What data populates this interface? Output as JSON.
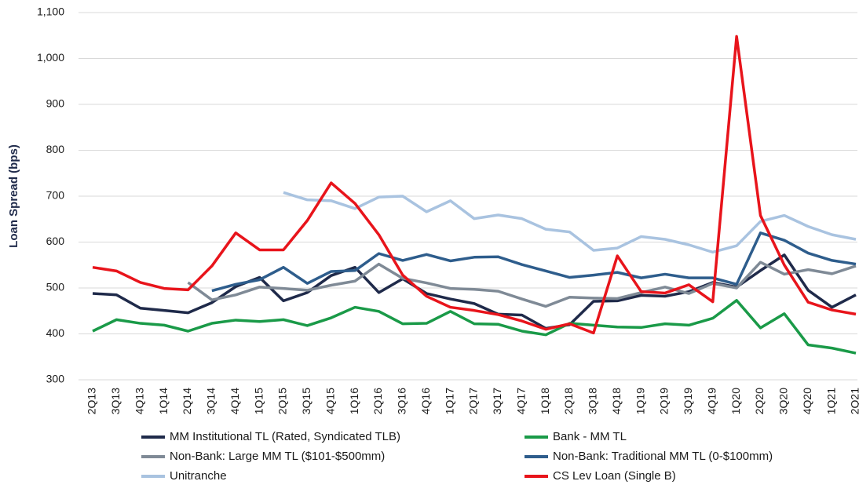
{
  "chart_data": {
    "type": "line",
    "ylabel": "Loan Spread (bps)",
    "categories": [
      "2Q13",
      "3Q13",
      "4Q13",
      "1Q14",
      "2Q14",
      "3Q14",
      "4Q14",
      "1Q15",
      "2Q15",
      "3Q15",
      "4Q15",
      "1Q16",
      "2Q16",
      "3Q16",
      "4Q16",
      "1Q17",
      "2Q17",
      "3Q17",
      "4Q17",
      "1Q18",
      "2Q18",
      "3Q18",
      "4Q18",
      "1Q19",
      "2Q19",
      "3Q19",
      "4Q19",
      "1Q20",
      "2Q20",
      "3Q20",
      "4Q20",
      "1Q21",
      "2Q21"
    ],
    "ylim": [
      300,
      1100
    ],
    "yticks": [
      300,
      400,
      500,
      600,
      700,
      800,
      900,
      {
        "value": 1000,
        "label": "1,000"
      },
      {
        "value": 1100,
        "label": "1,100"
      }
    ],
    "grid": true,
    "series": [
      {
        "name": "MM Institutional TL (Rated, Syndicated TLB)",
        "color": "#1f2a4a",
        "values": [
          488,
          485,
          456,
          451,
          446,
          468,
          503,
          523,
          472,
          490,
          527,
          545,
          490,
          520,
          488,
          476,
          466,
          443,
          441,
          412,
          420,
          471,
          472,
          484,
          482,
          492,
          512,
          502,
          538,
          572,
          495,
          458,
          485
        ]
      },
      {
        "name": "Bank - MM TL",
        "color": "#1a9a48",
        "values": [
          406,
          431,
          423,
          419,
          406,
          423,
          430,
          427,
          431,
          418,
          435,
          458,
          449,
          422,
          423,
          449,
          422,
          421,
          406,
          398,
          423,
          419,
          415,
          414,
          422,
          419,
          434,
          473,
          413,
          444,
          376,
          369,
          358
        ]
      },
      {
        "name": "Non-Bank: Large MM TL ($101-$500mm)",
        "color": "#7f8a96",
        "values": [
          null,
          null,
          null,
          null,
          512,
          474,
          485,
          502,
          499,
          495,
          506,
          515,
          552,
          521,
          511,
          499,
          497,
          493,
          476,
          460,
          480,
          478,
          477,
          490,
          502,
          488,
          510,
          500,
          556,
          530,
          540,
          531,
          548
        ]
      },
      {
        "name": "Non-Bank: Traditional MM TL (0-$100mm)",
        "color": "#2e5d8c",
        "values": [
          null,
          null,
          null,
          null,
          null,
          494,
          508,
          518,
          545,
          510,
          536,
          538,
          575,
          560,
          573,
          559,
          567,
          568,
          551,
          537,
          523,
          528,
          534,
          522,
          530,
          522,
          522,
          508,
          620,
          604,
          576,
          560,
          552
        ]
      },
      {
        "name": "Unitranche",
        "color": "#a9c3e0",
        "values": [
          null,
          null,
          null,
          null,
          null,
          null,
          null,
          null,
          708,
          692,
          690,
          673,
          698,
          700,
          666,
          690,
          651,
          659,
          651,
          628,
          622,
          582,
          587,
          612,
          606,
          594,
          578,
          592,
          645,
          658,
          634,
          616,
          606
        ]
      },
      {
        "name": "CS Lev Loan (Single B)",
        "color": "#e8141b",
        "values": [
          545,
          537,
          512,
          499,
          496,
          548,
          620,
          583,
          583,
          647,
          729,
          684,
          616,
          528,
          482,
          458,
          451,
          442,
          428,
          410,
          422,
          402,
          570,
          492,
          489,
          507,
          470,
          1048,
          658,
          550,
          469,
          452,
          443
        ]
      }
    ]
  }
}
